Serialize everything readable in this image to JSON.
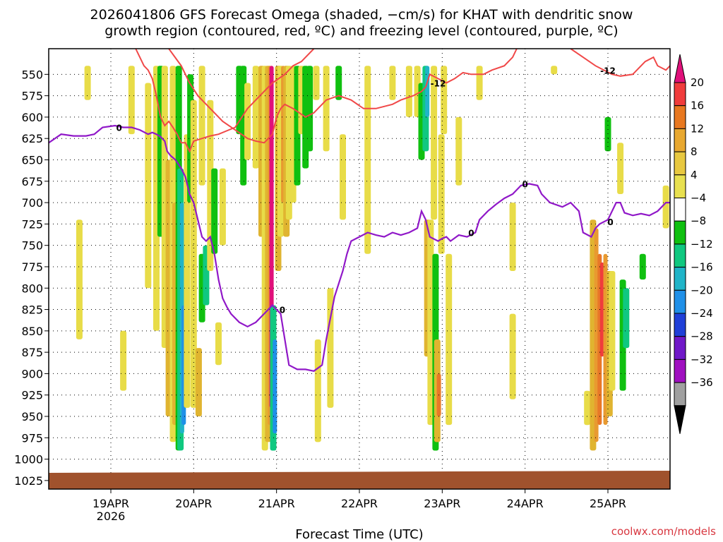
{
  "chart_data": {
    "type": "heatmap",
    "title_line1": "2026041806 GFS Forecast Omega (shaded, −cm/s) for KHAT with dendritic snow",
    "title_line2": "growth region (contoured, red, ºC) and freezing level (contoured, purple, ºC)",
    "xlabel": "Forecast Time (UTC)",
    "credit": "coolwx.com/models",
    "x_start_day": 18.25,
    "x_end_day": 25.75,
    "x_ticks": [
      {
        "day": 19,
        "label": "19APR",
        "sub": "2026"
      },
      {
        "day": 20,
        "label": "20APR",
        "sub": ""
      },
      {
        "day": 21,
        "label": "21APR",
        "sub": ""
      },
      {
        "day": 22,
        "label": "22APR",
        "sub": ""
      },
      {
        "day": 23,
        "label": "23APR",
        "sub": ""
      },
      {
        "day": 24,
        "label": "24APR",
        "sub": ""
      },
      {
        "day": 25,
        "label": "25APR",
        "sub": ""
      }
    ],
    "y_ticks": [
      550,
      575,
      600,
      625,
      650,
      675,
      700,
      725,
      750,
      775,
      800,
      825,
      850,
      875,
      900,
      925,
      950,
      975,
      1000,
      1025
    ],
    "ylim_hpa": [
      520,
      1035
    ],
    "ground_level_hpa": 1016,
    "colorbar": {
      "labels": [
        "20",
        "16",
        "12",
        "8",
        "4",
        "−4",
        "−8",
        "−12",
        "−16",
        "−20",
        "−24",
        "−28",
        "−32",
        "−36"
      ],
      "colors": [
        "#f03c3c",
        "#e87820",
        "#e8a830",
        "#e8c840",
        "#e8e050",
        "#ffffff",
        "#10c010",
        "#10c880",
        "#20b4c8",
        "#2090e8",
        "#2040d8",
        "#7018c8",
        "#a010c0",
        "#a0a0a0"
      ],
      "top_arrow_color": "#e0107a",
      "bottom_arrow_color": "#000000"
    },
    "omega_colors": {
      "p4": "#e8dc48",
      "p8": "#e0b430",
      "p12": "#e89a30",
      "p16": "#e87828",
      "p20": "#f03c3c",
      "p24": "#e0107a",
      "n4": "#10c010",
      "n8": "#10c880",
      "n12": "#20b4c8",
      "n16": "#2090e8",
      "n20": "#2040d8"
    },
    "freezing_line_color": "#9018c8",
    "dgz_line_color": "#f04848",
    "ground_color": "#a0522d",
    "omega_cells": [
      {
        "d": 18.62,
        "p0": 720,
        "p1": 860,
        "v": 4
      },
      {
        "d": 18.72,
        "p0": 540,
        "p1": 580,
        "v": 4
      },
      {
        "d": 19.15,
        "p0": 850,
        "p1": 920,
        "v": 4
      },
      {
        "d": 19.25,
        "p0": 540,
        "p1": 620,
        "v": 4
      },
      {
        "d": 19.45,
        "p0": 560,
        "p1": 800,
        "v": 4
      },
      {
        "d": 19.55,
        "p0": 540,
        "p1": 850,
        "v": 4
      },
      {
        "d": 19.6,
        "p0": 540,
        "p1": 740,
        "v": -4
      },
      {
        "d": 19.65,
        "p0": 540,
        "p1": 870,
        "v": 4
      },
      {
        "d": 19.7,
        "p0": 650,
        "p1": 950,
        "v": 8
      },
      {
        "d": 19.75,
        "p0": 540,
        "p1": 980,
        "v": 4
      },
      {
        "d": 19.78,
        "p0": 700,
        "p1": 960,
        "v": 8
      },
      {
        "d": 19.82,
        "p0": 540,
        "p1": 990,
        "v": -4
      },
      {
        "d": 19.84,
        "p0": 660,
        "p1": 990,
        "v": -8
      },
      {
        "d": 19.86,
        "p0": 700,
        "p1": 970,
        "v": -12
      },
      {
        "d": 19.88,
        "p0": 820,
        "p1": 960,
        "v": -16
      },
      {
        "d": 19.92,
        "p0": 620,
        "p1": 940,
        "v": 4
      },
      {
        "d": 19.96,
        "p0": 550,
        "p1": 700,
        "v": -4
      },
      {
        "d": 20.0,
        "p0": 580,
        "p1": 940,
        "v": 4
      },
      {
        "d": 20.06,
        "p0": 870,
        "p1": 950,
        "v": 8
      },
      {
        "d": 20.1,
        "p0": 540,
        "p1": 680,
        "v": 4
      },
      {
        "d": 20.1,
        "p0": 760,
        "p1": 840,
        "v": -4
      },
      {
        "d": 20.15,
        "p0": 750,
        "p1": 820,
        "v": -8
      },
      {
        "d": 20.2,
        "p0": 580,
        "p1": 780,
        "v": 4
      },
      {
        "d": 20.25,
        "p0": 660,
        "p1": 760,
        "v": -4
      },
      {
        "d": 20.3,
        "p0": 840,
        "p1": 890,
        "v": 4
      },
      {
        "d": 20.35,
        "p0": 660,
        "p1": 750,
        "v": 4
      },
      {
        "d": 20.55,
        "p0": 540,
        "p1": 620,
        "v": -4
      },
      {
        "d": 20.6,
        "p0": 540,
        "p1": 680,
        "v": -4
      },
      {
        "d": 20.65,
        "p0": 560,
        "p1": 650,
        "v": 4
      },
      {
        "d": 20.75,
        "p0": 540,
        "p1": 660,
        "v": 4
      },
      {
        "d": 20.82,
        "p0": 540,
        "p1": 740,
        "v": 8
      },
      {
        "d": 20.86,
        "p0": 540,
        "p1": 990,
        "v": 4
      },
      {
        "d": 20.9,
        "p0": 540,
        "p1": 980,
        "v": 8
      },
      {
        "d": 20.92,
        "p0": 540,
        "p1": 960,
        "v": 12
      },
      {
        "d": 20.94,
        "p0": 540,
        "p1": 940,
        "v": 24
      },
      {
        "d": 20.96,
        "p0": 820,
        "p1": 990,
        "v": -8
      },
      {
        "d": 20.98,
        "p0": 860,
        "p1": 970,
        "v": -16
      },
      {
        "d": 21.02,
        "p0": 540,
        "p1": 780,
        "v": 8
      },
      {
        "d": 21.05,
        "p0": 540,
        "p1": 740,
        "v": 4
      },
      {
        "d": 21.08,
        "p0": 540,
        "p1": 700,
        "v": 12
      },
      {
        "d": 21.12,
        "p0": 540,
        "p1": 740,
        "v": 8
      },
      {
        "d": 21.15,
        "p0": 540,
        "p1": 720,
        "v": 4
      },
      {
        "d": 21.2,
        "p0": 540,
        "p1": 700,
        "v": 4
      },
      {
        "d": 21.25,
        "p0": 540,
        "p1": 680,
        "v": -4
      },
      {
        "d": 21.3,
        "p0": 540,
        "p1": 620,
        "v": 4
      },
      {
        "d": 21.35,
        "p0": 540,
        "p1": 660,
        "v": -4
      },
      {
        "d": 21.4,
        "p0": 540,
        "p1": 640,
        "v": -4
      },
      {
        "d": 21.48,
        "p0": 540,
        "p1": 580,
        "v": 4
      },
      {
        "d": 21.5,
        "p0": 860,
        "p1": 980,
        "v": 4
      },
      {
        "d": 21.6,
        "p0": 540,
        "p1": 640,
        "v": 4
      },
      {
        "d": 21.65,
        "p0": 800,
        "p1": 940,
        "v": 4
      },
      {
        "d": 21.75,
        "p0": 540,
        "p1": 580,
        "v": -4
      },
      {
        "d": 21.8,
        "p0": 620,
        "p1": 720,
        "v": 4
      },
      {
        "d": 22.1,
        "p0": 540,
        "p1": 760,
        "v": 4
      },
      {
        "d": 22.4,
        "p0": 540,
        "p1": 580,
        "v": 4
      },
      {
        "d": 22.6,
        "p0": 540,
        "p1": 600,
        "v": 4
      },
      {
        "d": 22.7,
        "p0": 540,
        "p1": 600,
        "v": 4
      },
      {
        "d": 22.75,
        "p0": 560,
        "p1": 650,
        "v": -4
      },
      {
        "d": 22.8,
        "p0": 540,
        "p1": 640,
        "v": -8
      },
      {
        "d": 22.82,
        "p0": 540,
        "p1": 600,
        "v": -12
      },
      {
        "d": 22.82,
        "p0": 720,
        "p1": 880,
        "v": 8
      },
      {
        "d": 22.86,
        "p0": 720,
        "p1": 960,
        "v": 4
      },
      {
        "d": 22.9,
        "p0": 540,
        "p1": 720,
        "v": 4
      },
      {
        "d": 22.92,
        "p0": 760,
        "p1": 990,
        "v": -4
      },
      {
        "d": 22.94,
        "p0": 860,
        "p1": 980,
        "v": 8
      },
      {
        "d": 22.96,
        "p0": 900,
        "p1": 950,
        "v": 16
      },
      {
        "d": 22.99,
        "p0": 620,
        "p1": 760,
        "v": 4
      },
      {
        "d": 23.02,
        "p0": 540,
        "p1": 620,
        "v": 4
      },
      {
        "d": 23.08,
        "p0": 760,
        "p1": 960,
        "v": 4
      },
      {
        "d": 23.2,
        "p0": 600,
        "p1": 680,
        "v": 4
      },
      {
        "d": 23.45,
        "p0": 540,
        "p1": 580,
        "v": 4
      },
      {
        "d": 23.85,
        "p0": 700,
        "p1": 780,
        "v": 4
      },
      {
        "d": 23.85,
        "p0": 830,
        "p1": 930,
        "v": 4
      },
      {
        "d": 24.35,
        "p0": 540,
        "p1": 550,
        "v": 4
      },
      {
        "d": 24.75,
        "p0": 920,
        "p1": 960,
        "v": 4
      },
      {
        "d": 24.82,
        "p0": 720,
        "p1": 990,
        "v": 8
      },
      {
        "d": 24.86,
        "p0": 730,
        "p1": 980,
        "v": 12
      },
      {
        "d": 24.9,
        "p0": 760,
        "p1": 960,
        "v": 16
      },
      {
        "d": 24.93,
        "p0": 770,
        "p1": 880,
        "v": 20
      },
      {
        "d": 24.97,
        "p0": 760,
        "p1": 960,
        "v": 12
      },
      {
        "d": 25.0,
        "p0": 600,
        "p1": 640,
        "v": -4
      },
      {
        "d": 25.02,
        "p0": 780,
        "p1": 950,
        "v": 8
      },
      {
        "d": 25.05,
        "p0": 780,
        "p1": 920,
        "v": 4
      },
      {
        "d": 25.15,
        "p0": 630,
        "p1": 690,
        "v": 4
      },
      {
        "d": 25.18,
        "p0": 790,
        "p1": 920,
        "v": -4
      },
      {
        "d": 25.22,
        "p0": 800,
        "p1": 870,
        "v": -8
      },
      {
        "d": 25.42,
        "p0": 760,
        "p1": 790,
        "v": -4
      },
      {
        "d": 25.7,
        "p0": 680,
        "p1": 730,
        "v": 4
      }
    ],
    "freezing_level": {
      "label": "0",
      "points": [
        [
          18.25,
          630
        ],
        [
          18.4,
          620
        ],
        [
          18.55,
          622
        ],
        [
          18.7,
          622
        ],
        [
          18.8,
          620
        ],
        [
          18.9,
          612
        ],
        [
          19.05,
          610
        ],
        [
          19.15,
          612
        ],
        [
          19.25,
          612
        ],
        [
          19.35,
          615
        ],
        [
          19.45,
          620
        ],
        [
          19.5,
          618
        ],
        [
          19.55,
          620
        ],
        [
          19.6,
          623
        ],
        [
          19.65,
          628
        ],
        [
          19.68,
          640
        ],
        [
          19.72,
          645
        ],
        [
          19.78,
          650
        ],
        [
          19.85,
          660
        ],
        [
          19.9,
          670
        ],
        [
          19.95,
          690
        ],
        [
          20.0,
          700
        ],
        [
          20.05,
          720
        ],
        [
          20.1,
          740
        ],
        [
          20.15,
          745
        ],
        [
          20.2,
          740
        ],
        [
          20.25,
          760
        ],
        [
          20.3,
          790
        ],
        [
          20.35,
          812
        ],
        [
          20.4,
          822
        ],
        [
          20.45,
          830
        ],
        [
          20.55,
          840
        ],
        [
          20.65,
          845
        ],
        [
          20.75,
          840
        ],
        [
          20.85,
          830
        ],
        [
          20.95,
          820
        ],
        [
          21.05,
          830
        ],
        [
          21.1,
          860
        ],
        [
          21.15,
          890
        ],
        [
          21.25,
          895
        ],
        [
          21.35,
          895
        ],
        [
          21.45,
          897
        ],
        [
          21.55,
          890
        ],
        [
          21.6,
          860
        ],
        [
          21.7,
          810
        ],
        [
          21.8,
          780
        ],
        [
          21.85,
          760
        ],
        [
          21.9,
          745
        ],
        [
          22.0,
          740
        ],
        [
          22.1,
          735
        ],
        [
          22.2,
          738
        ],
        [
          22.3,
          740
        ],
        [
          22.4,
          735
        ],
        [
          22.5,
          738
        ],
        [
          22.6,
          735
        ],
        [
          22.7,
          730
        ],
        [
          22.75,
          710
        ],
        [
          22.8,
          720
        ],
        [
          22.85,
          740
        ],
        [
          22.95,
          745
        ],
        [
          23.0,
          742
        ],
        [
          23.05,
          740
        ],
        [
          23.1,
          745
        ],
        [
          23.2,
          738
        ],
        [
          23.3,
          740
        ],
        [
          23.4,
          735
        ],
        [
          23.45,
          720
        ],
        [
          23.55,
          710
        ],
        [
          23.65,
          702
        ],
        [
          23.75,
          695
        ],
        [
          23.85,
          690
        ],
        [
          23.95,
          680
        ],
        [
          24.05,
          678
        ],
        [
          24.15,
          680
        ],
        [
          24.2,
          690
        ],
        [
          24.3,
          700
        ],
        [
          24.45,
          705
        ],
        [
          24.55,
          700
        ],
        [
          24.65,
          710
        ],
        [
          24.7,
          735
        ],
        [
          24.8,
          740
        ],
        [
          24.85,
          730
        ],
        [
          24.9,
          725
        ],
        [
          25.0,
          720
        ],
        [
          25.05,
          710
        ],
        [
          25.1,
          700
        ],
        [
          25.15,
          700
        ],
        [
          25.2,
          712
        ],
        [
          25.3,
          715
        ],
        [
          25.4,
          713
        ],
        [
          25.5,
          715
        ],
        [
          25.6,
          710
        ],
        [
          25.7,
          700
        ],
        [
          25.75,
          700
        ]
      ]
    },
    "dgz_contours": [
      {
        "label": "",
        "points": [
          [
            19.3,
            520
          ],
          [
            19.4,
            540
          ],
          [
            19.45,
            545
          ],
          [
            19.5,
            555
          ],
          [
            19.55,
            575
          ],
          [
            19.6,
            600
          ],
          [
            19.65,
            610
          ],
          [
            19.7,
            605
          ],
          [
            19.75,
            612
          ],
          [
            19.8,
            620
          ],
          [
            19.85,
            630
          ],
          [
            19.9,
            630
          ],
          [
            19.95,
            640
          ],
          [
            20.0,
            628
          ],
          [
            20.1,
            625
          ],
          [
            20.2,
            622
          ],
          [
            20.3,
            620
          ],
          [
            20.5,
            612
          ],
          [
            20.65,
            590
          ],
          [
            20.8,
            575
          ],
          [
            20.95,
            560
          ],
          [
            21.1,
            550
          ],
          [
            21.2,
            540
          ],
          [
            21.3,
            535
          ],
          [
            21.45,
            520
          ]
        ]
      },
      {
        "label": "",
        "points": [
          [
            19.7,
            520
          ],
          [
            19.85,
            540
          ],
          [
            19.95,
            560
          ],
          [
            20.05,
            575
          ],
          [
            20.2,
            590
          ],
          [
            20.35,
            605
          ],
          [
            20.5,
            615
          ],
          [
            20.65,
            625
          ],
          [
            20.75,
            628
          ],
          [
            20.85,
            630
          ],
          [
            20.95,
            620
          ],
          [
            21.0,
            600
          ],
          [
            21.05,
            590
          ],
          [
            21.1,
            585
          ],
          [
            21.2,
            590
          ],
          [
            21.35,
            600
          ],
          [
            21.45,
            595
          ],
          [
            21.6,
            580
          ],
          [
            21.75,
            575
          ],
          [
            21.9,
            580
          ],
          [
            22.05,
            590
          ],
          [
            22.2,
            590
          ],
          [
            22.4,
            585
          ],
          [
            22.5,
            580
          ],
          [
            22.65,
            575
          ],
          [
            22.75,
            570
          ],
          [
            22.8,
            565
          ]
        ]
      },
      {
        "label": "-12",
        "points": [
          [
            22.8,
            565
          ],
          [
            22.85,
            550
          ],
          [
            22.95,
            555
          ],
          [
            23.05,
            560
          ],
          [
            23.15,
            555
          ],
          [
            23.25,
            548
          ],
          [
            23.35,
            550
          ],
          [
            23.5,
            550
          ],
          [
            23.6,
            545
          ],
          [
            23.75,
            540
          ],
          [
            23.85,
            530
          ],
          [
            23.9,
            520
          ]
        ]
      },
      {
        "label": "-12",
        "points": [
          [
            24.55,
            520
          ],
          [
            24.7,
            530
          ],
          [
            24.85,
            540
          ],
          [
            24.95,
            545
          ],
          [
            25.05,
            550
          ],
          [
            25.15,
            552
          ],
          [
            25.3,
            550
          ],
          [
            25.45,
            535
          ],
          [
            25.55,
            530
          ],
          [
            25.6,
            540
          ],
          [
            25.7,
            545
          ],
          [
            25.75,
            540
          ]
        ]
      }
    ]
  }
}
